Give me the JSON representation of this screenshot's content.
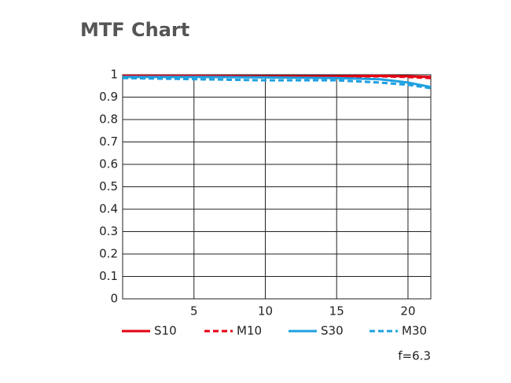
{
  "chart_data": {
    "type": "line",
    "title": "MTF Chart",
    "annotation": "f=6.3",
    "x": [
      0,
      5,
      10,
      15,
      18,
      20,
      21.6
    ],
    "series": [
      {
        "name": "S10",
        "color": "#e60012",
        "dashed": false,
        "values": [
          0.995,
          0.995,
          0.993,
          0.993,
          0.995,
          0.993,
          0.99
        ]
      },
      {
        "name": "M10",
        "color": "#e60012",
        "dashed": true,
        "values": [
          0.992,
          0.992,
          0.99,
          0.99,
          0.993,
          0.99,
          0.985
        ]
      },
      {
        "name": "S30",
        "color": "#1ea0e0",
        "dashed": false,
        "values": [
          0.99,
          0.99,
          0.988,
          0.985,
          0.98,
          0.965,
          0.945
        ]
      },
      {
        "name": "M30",
        "color": "#1ea0e0",
        "dashed": true,
        "values": [
          0.985,
          0.98,
          0.975,
          0.975,
          0.965,
          0.955,
          0.94
        ]
      }
    ],
    "xlim": [
      0,
      21.6
    ],
    "xticks": [
      5,
      10,
      15,
      20
    ],
    "ylim": [
      0,
      1
    ],
    "yticks": [
      0,
      0.1,
      0.2,
      0.3,
      0.4,
      0.5,
      0.6,
      0.7,
      0.8,
      0.9,
      1
    ],
    "grid": true
  }
}
